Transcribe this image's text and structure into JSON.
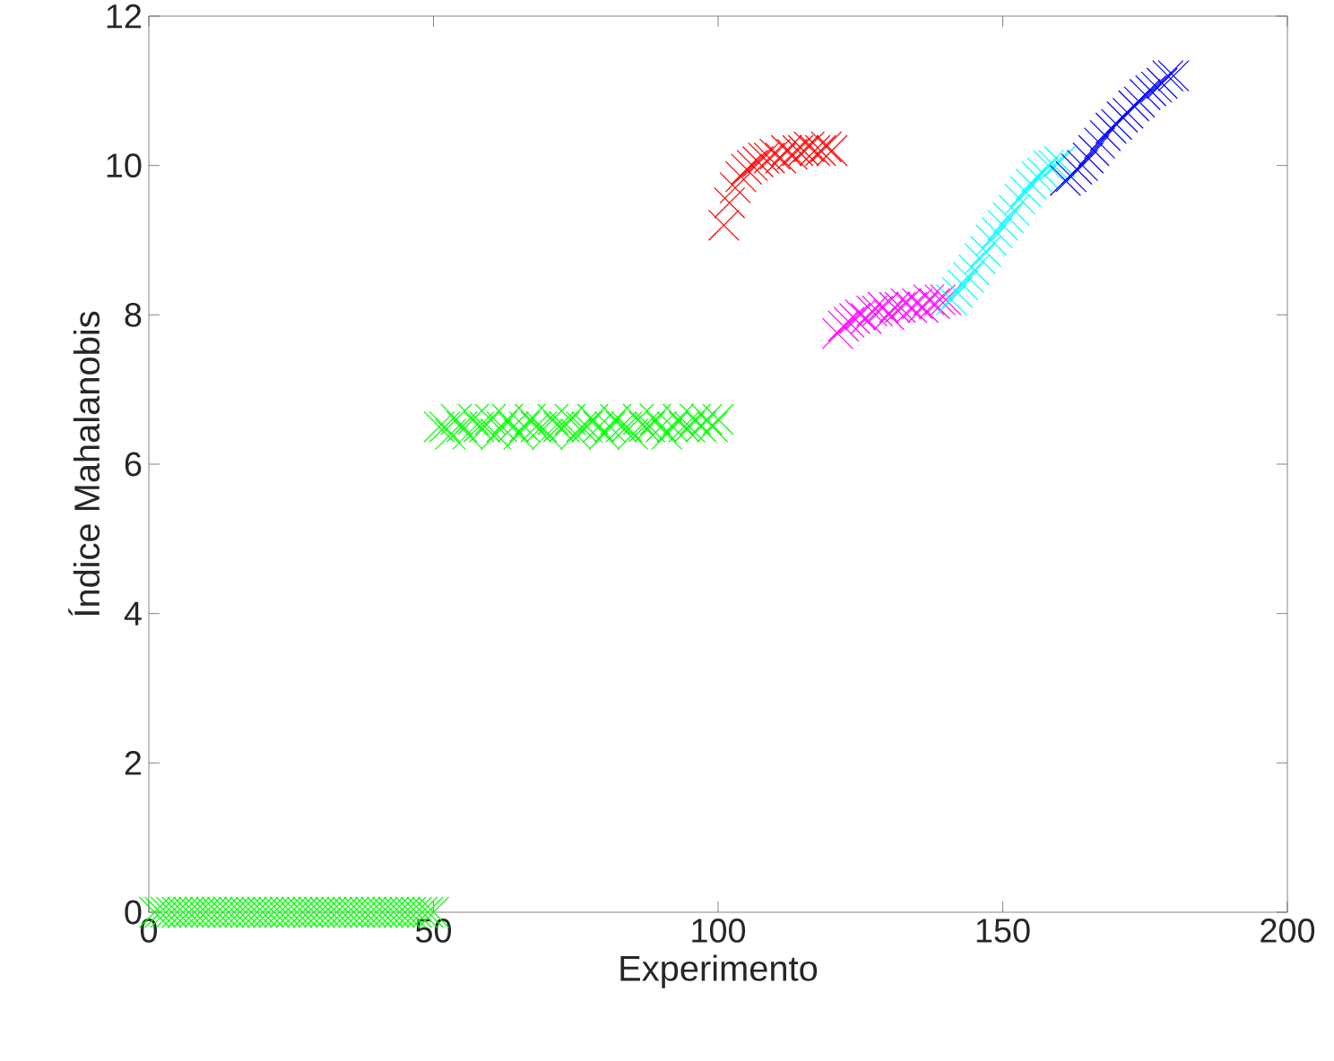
{
  "chart_data": {
    "type": "scatter",
    "xlabel": "Experimento",
    "ylabel": "Índice Mahalanobis",
    "marker": "cross",
    "xlim": [
      0,
      200
    ],
    "ylim": [
      0,
      12
    ],
    "xticks": [
      0,
      50,
      100,
      150,
      200
    ],
    "yticks": [
      0,
      2,
      4,
      6,
      8,
      10,
      12
    ],
    "series": [
      {
        "color": "#00ff00",
        "x": [
          1,
          2,
          3,
          4,
          5,
          6,
          7,
          8,
          9,
          10,
          11,
          12,
          13,
          14,
          15,
          16,
          17,
          18,
          19,
          20,
          21,
          22,
          23,
          24,
          25,
          26,
          27,
          28,
          29,
          30,
          31,
          32,
          33,
          34,
          35,
          36,
          37,
          38,
          39,
          40,
          41,
          42,
          43,
          44,
          45,
          46,
          47,
          48,
          49,
          50
        ],
        "values": [
          0,
          0,
          0,
          0,
          0,
          0,
          0,
          0,
          0,
          0,
          0,
          0,
          0,
          0,
          0,
          0,
          0,
          0,
          0,
          0,
          0,
          0,
          0,
          0,
          0,
          0,
          0,
          0,
          0,
          0,
          0,
          0,
          0,
          0,
          0,
          0,
          0,
          0,
          0,
          0,
          0,
          0,
          0,
          0,
          0,
          0,
          0,
          0,
          0,
          0
        ]
      },
      {
        "color": "#00ff00",
        "x": [
          51,
          52,
          53,
          54,
          55,
          56,
          57,
          58,
          59,
          60,
          61,
          62,
          63,
          64,
          65,
          66,
          67,
          68,
          69,
          70,
          71,
          72,
          73,
          74,
          75,
          76,
          77,
          78,
          79,
          80,
          81,
          82,
          83,
          84,
          85,
          86,
          87,
          88,
          89,
          90,
          91,
          92,
          93,
          94,
          95,
          96,
          97,
          98,
          99,
          100
        ],
        "values": [
          6.5,
          6.5,
          6.4,
          6.6,
          6.5,
          6.4,
          6.6,
          6.5,
          6.5,
          6.6,
          6.4,
          6.5,
          6.6,
          6.5,
          6.4,
          6.5,
          6.6,
          6.5,
          6.5,
          6.4,
          6.6,
          6.5,
          6.5,
          6.6,
          6.4,
          6.5,
          6.5,
          6.6,
          6.5,
          6.4,
          6.5,
          6.6,
          6.5,
          6.5,
          6.4,
          6.6,
          6.5,
          6.5,
          6.6,
          6.5,
          6.4,
          6.5,
          6.6,
          6.5,
          6.5,
          6.6,
          6.5,
          6.6,
          6.5,
          6.6
        ]
      },
      {
        "color": "#ff0000",
        "x": [
          101,
          102,
          103,
          104,
          105,
          106,
          107,
          108,
          109,
          110,
          111,
          112,
          113,
          114,
          115,
          116,
          117,
          118,
          119,
          120
        ],
        "values": [
          9.2,
          9.5,
          9.7,
          9.85,
          9.95,
          10.0,
          10.05,
          10.1,
          10.1,
          10.15,
          10.1,
          10.2,
          10.15,
          10.2,
          10.2,
          10.25,
          10.2,
          10.2,
          10.25,
          10.2
        ]
      },
      {
        "color": "#ff00ff",
        "x": [
          121,
          122,
          123,
          124,
          125,
          126,
          127,
          128,
          129,
          130,
          131,
          132,
          133,
          134,
          135,
          136,
          137,
          138,
          139,
          140
        ],
        "values": [
          7.75,
          7.85,
          7.9,
          7.95,
          8.0,
          7.95,
          8.05,
          8.05,
          8.1,
          8.0,
          8.1,
          8.1,
          8.15,
          8.1,
          8.15,
          8.1,
          8.2,
          8.15,
          8.2,
          8.2
        ]
      },
      {
        "color": "#00ffff",
        "x": [
          141,
          142,
          143,
          144,
          145,
          146,
          147,
          148,
          149,
          150,
          151,
          152,
          153,
          154,
          155,
          156,
          157,
          158,
          159,
          160
        ],
        "values": [
          8.2,
          8.3,
          8.4,
          8.5,
          8.6,
          8.75,
          8.85,
          9.0,
          9.1,
          9.2,
          9.3,
          9.4,
          9.55,
          9.65,
          9.75,
          9.85,
          9.9,
          10.0,
          10.0,
          10.05
        ]
      },
      {
        "color": "#0000ff",
        "x": [
          161,
          162,
          163,
          164,
          165,
          166,
          167,
          168,
          169,
          170,
          171,
          172,
          173,
          174,
          175,
          176,
          177,
          178,
          179,
          180
        ],
        "values": [
          9.8,
          9.85,
          9.95,
          10.0,
          10.1,
          10.2,
          10.3,
          10.4,
          10.5,
          10.55,
          10.65,
          10.7,
          10.8,
          10.85,
          10.95,
          11.0,
          11.05,
          11.1,
          11.2,
          11.2
        ]
      }
    ]
  }
}
